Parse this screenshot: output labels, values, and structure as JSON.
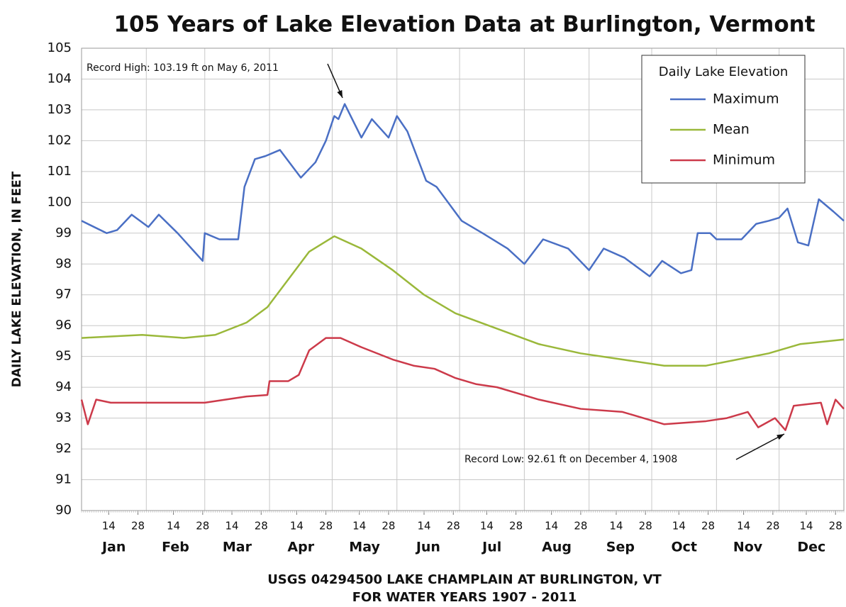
{
  "chart_data": {
    "type": "line",
    "title": "105 Years of Lake Elevation Data at Burlington, Vermont",
    "ylabel": "DAILY LAKE ELEVATION, IN FEET",
    "xlabel": [
      "USGS 04294500 LAKE CHAMPLAIN AT BURLINGTON, VT",
      "FOR WATER YEARS 1907 - 2011"
    ],
    "xlim": [
      1,
      366
    ],
    "ylim": [
      90,
      105
    ],
    "yticks": [
      90,
      91,
      92,
      93,
      94,
      95,
      96,
      97,
      98,
      99,
      100,
      101,
      102,
      103,
      104,
      105
    ],
    "xticks": [
      {
        "value": 14,
        "label": "14"
      },
      {
        "value": 28,
        "label": "28"
      },
      {
        "value": 45,
        "label": "14"
      },
      {
        "value": 59,
        "label": "28"
      },
      {
        "value": 73,
        "label": "14"
      },
      {
        "value": 87,
        "label": "28"
      },
      {
        "value": 104,
        "label": "14"
      },
      {
        "value": 118,
        "label": "28"
      },
      {
        "value": 134,
        "label": "14"
      },
      {
        "value": 148,
        "label": "28"
      },
      {
        "value": 165,
        "label": "14"
      },
      {
        "value": 179,
        "label": "28"
      },
      {
        "value": 195,
        "label": "14"
      },
      {
        "value": 209,
        "label": "28"
      },
      {
        "value": 226,
        "label": "14"
      },
      {
        "value": 240,
        "label": "28"
      },
      {
        "value": 257,
        "label": "14"
      },
      {
        "value": 271,
        "label": "28"
      },
      {
        "value": 287,
        "label": "14"
      },
      {
        "value": 301,
        "label": "28"
      },
      {
        "value": 318,
        "label": "14"
      },
      {
        "value": 332,
        "label": "28"
      },
      {
        "value": 348,
        "label": "14"
      },
      {
        "value": 362,
        "label": "28"
      }
    ],
    "months": [
      "Jan",
      "Feb",
      "Mar",
      "Apr",
      "May",
      "Jun",
      "Jul",
      "Aug",
      "Sep",
      "Oct",
      "Nov",
      "Dec"
    ],
    "month_grid": [
      1,
      32,
      60,
      91,
      121,
      152,
      182,
      213,
      244,
      274,
      305,
      335,
      366
    ],
    "grid": true,
    "legend": {
      "title": "Daily Lake Elevation",
      "position": "upper right"
    },
    "series": [
      {
        "name": "Maximum",
        "color": "#4a6fc4",
        "x": [
          1,
          13,
          18,
          25,
          33,
          38,
          47,
          55,
          59,
          60,
          67,
          76,
          79,
          84,
          89,
          96,
          106,
          113,
          118,
          122,
          124,
          127,
          135,
          140,
          148,
          152,
          157,
          166,
          171,
          183,
          193,
          205,
          213,
          222,
          234,
          244,
          251,
          261,
          273,
          279,
          288,
          293,
          296,
          302,
          305,
          317,
          324,
          330,
          335,
          339,
          344,
          349,
          354,
          361,
          366
        ],
        "values": [
          99.4,
          99.0,
          99.1,
          99.6,
          99.2,
          99.6,
          99.0,
          98.4,
          98.1,
          99.0,
          98.8,
          98.8,
          100.5,
          101.4,
          101.5,
          101.7,
          100.8,
          101.3,
          102.0,
          102.8,
          102.7,
          103.19,
          102.1,
          102.7,
          102.1,
          102.8,
          102.3,
          100.7,
          100.5,
          99.4,
          99.0,
          98.5,
          98.0,
          98.8,
          98.5,
          97.8,
          98.5,
          98.2,
          97.6,
          98.1,
          97.7,
          97.8,
          99.0,
          99.0,
          98.8,
          98.8,
          99.3,
          99.4,
          99.5,
          99.8,
          98.7,
          98.6,
          100.1,
          99.7,
          99.4
        ]
      },
      {
        "name": "Mean",
        "color": "#9ab83a",
        "x": [
          1,
          30,
          50,
          65,
          80,
          90,
          100,
          110,
          122,
          135,
          150,
          165,
          180,
          200,
          220,
          240,
          260,
          280,
          300,
          315,
          330,
          345,
          366
        ],
        "values": [
          95.6,
          95.7,
          95.6,
          95.7,
          96.1,
          96.6,
          97.5,
          98.4,
          98.9,
          98.5,
          97.8,
          97.0,
          96.4,
          95.9,
          95.4,
          95.1,
          94.9,
          94.7,
          94.7,
          94.9,
          95.1,
          95.4,
          95.55
        ]
      },
      {
        "name": "Minimum",
        "color": "#cc3a4a",
        "x": [
          1,
          4,
          8,
          15,
          30,
          60,
          80,
          90,
          91,
          100,
          105,
          110,
          118,
          125,
          135,
          150,
          160,
          170,
          180,
          190,
          200,
          220,
          240,
          260,
          275,
          280,
          300,
          310,
          320,
          325,
          333,
          338,
          342,
          355,
          358,
          362,
          366
        ],
        "values": [
          93.6,
          92.8,
          93.6,
          93.5,
          93.5,
          93.5,
          93.7,
          93.75,
          94.2,
          94.2,
          94.4,
          95.2,
          95.6,
          95.6,
          95.3,
          94.9,
          94.7,
          94.6,
          94.3,
          94.1,
          94.0,
          93.6,
          93.3,
          93.2,
          92.9,
          92.8,
          92.9,
          93.0,
          93.2,
          92.7,
          93.0,
          92.61,
          93.4,
          93.5,
          92.8,
          93.6,
          93.3
        ]
      }
    ],
    "annotations": [
      "Record High:  103.19 ft on May 6, 2011",
      "Record Low:  92.61 ft on December 4, 1908"
    ]
  }
}
